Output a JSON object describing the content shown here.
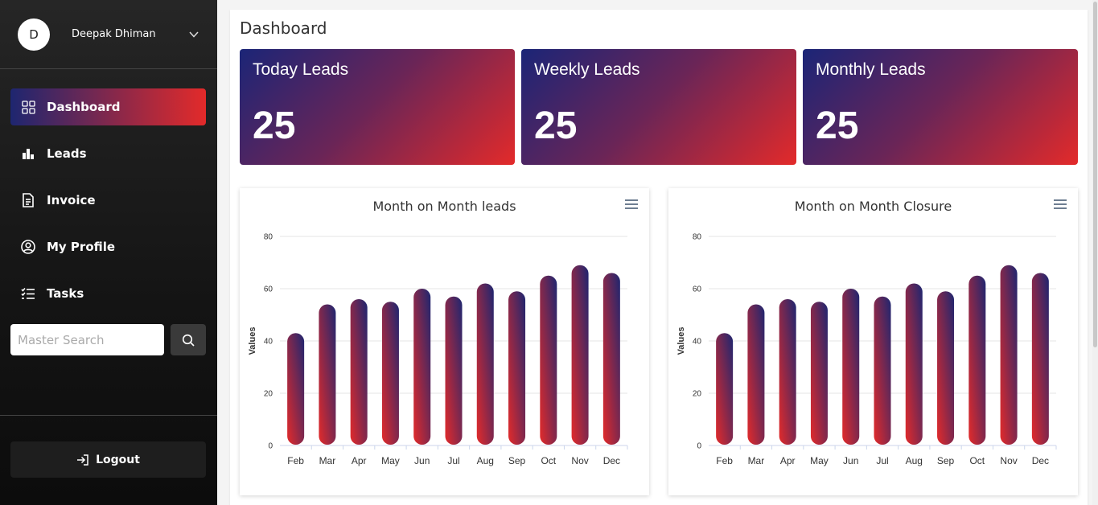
{
  "user": {
    "initial": "D",
    "name": "Deepak Dhiman"
  },
  "nav": [
    {
      "label": "Dashboard",
      "icon": "grid-icon",
      "active": true
    },
    {
      "label": "Leads",
      "icon": "bar-chart-icon"
    },
    {
      "label": "Invoice",
      "icon": "invoice-icon"
    },
    {
      "label": "My Profile",
      "icon": "user-circle-icon"
    },
    {
      "label": "Tasks",
      "icon": "task-list-icon"
    }
  ],
  "search": {
    "placeholder": "Master Search"
  },
  "logout_label": "Logout",
  "page_title": "Dashboard",
  "cards": [
    {
      "label": "Today Leads",
      "value": "25"
    },
    {
      "label": "Weekly Leads",
      "value": "25"
    },
    {
      "label": "Monthly Leads",
      "value": "25"
    }
  ],
  "colors": {
    "gradient_start": "#1e2670",
    "gradient_end": "#e32a2a"
  },
  "chart_data": [
    {
      "type": "bar",
      "title": "Month on Month leads",
      "ylabel": "Values",
      "xlabel": "",
      "categories": [
        "Feb",
        "Mar",
        "Apr",
        "May",
        "Jun",
        "Jul",
        "Aug",
        "Sep",
        "Oct",
        "Nov",
        "Dec"
      ],
      "values": [
        43,
        54,
        56,
        55,
        60,
        57,
        62,
        59,
        65,
        69,
        66
      ],
      "ylim": [
        0,
        80
      ],
      "yticks": [
        0,
        20,
        40,
        60,
        80
      ],
      "grid": true,
      "legend": "none"
    },
    {
      "type": "bar",
      "title": "Month on Month Closure",
      "ylabel": "Values",
      "xlabel": "",
      "categories": [
        "Feb",
        "Mar",
        "Apr",
        "May",
        "Jun",
        "Jul",
        "Aug",
        "Sep",
        "Oct",
        "Nov",
        "Dec"
      ],
      "values": [
        43,
        54,
        56,
        55,
        60,
        57,
        62,
        59,
        65,
        69,
        66
      ],
      "ylim": [
        0,
        80
      ],
      "yticks": [
        0,
        20,
        40,
        60,
        80
      ],
      "grid": true,
      "legend": "none"
    }
  ]
}
